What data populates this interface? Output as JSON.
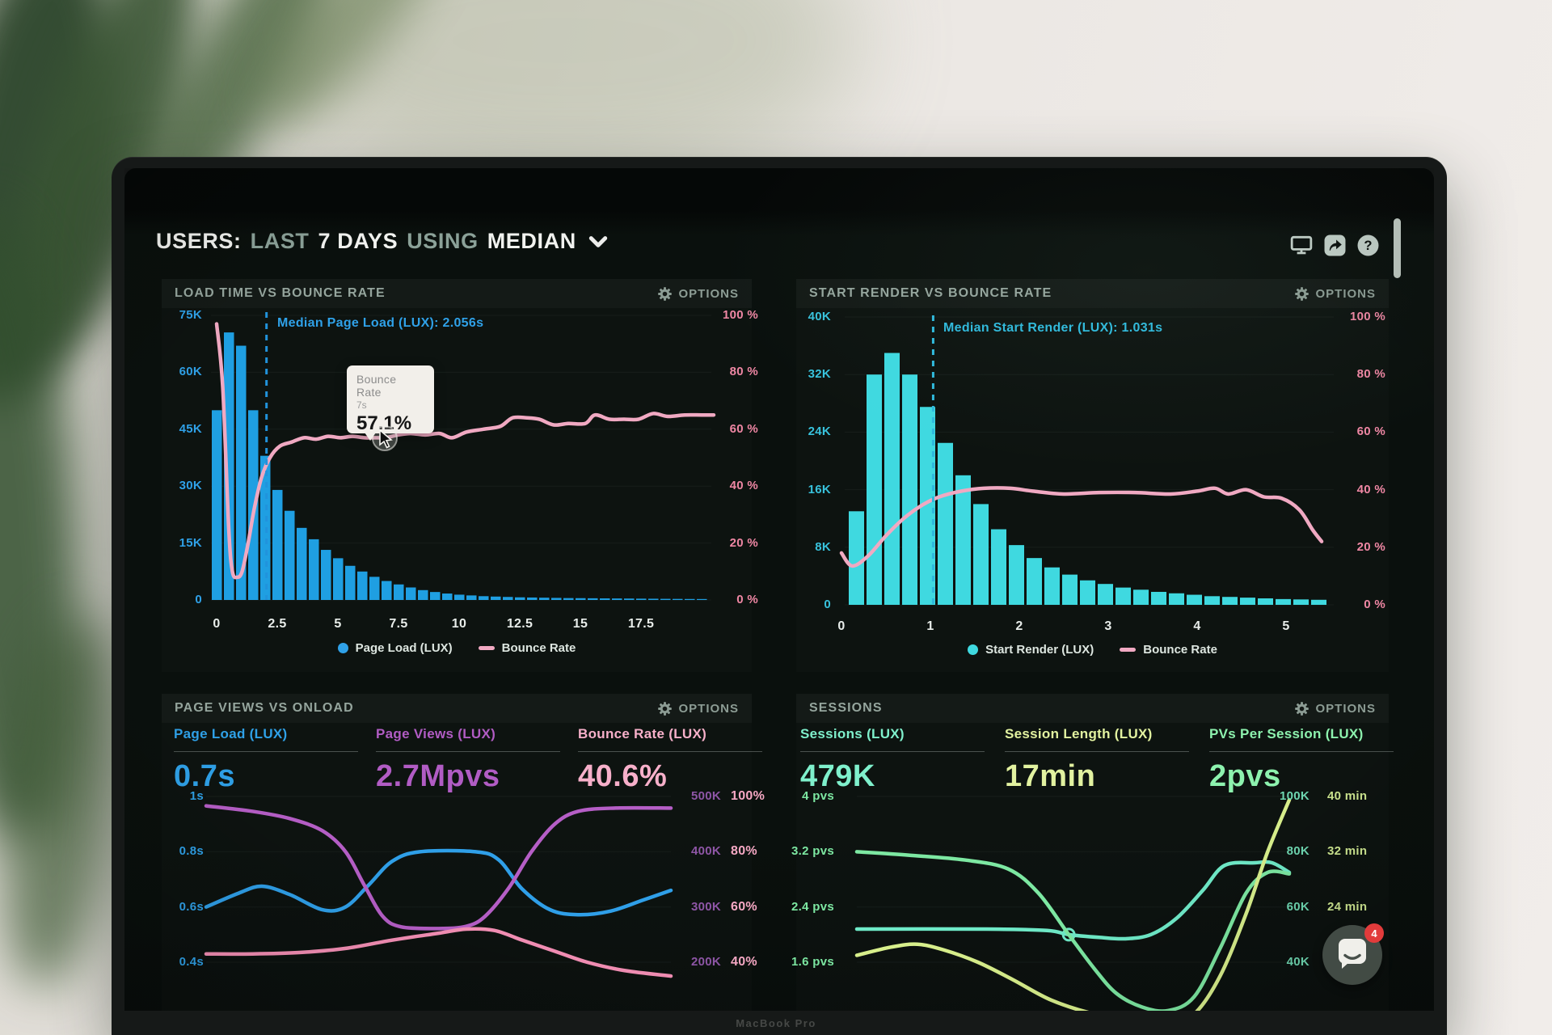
{
  "header": {
    "prefix": "USERS:",
    "word_last": "LAST",
    "days": "7 DAYS",
    "word_using": "USING",
    "metric": "MEDIAN"
  },
  "ui": {
    "options_label": "OPTIONS"
  },
  "tooltip": {
    "series": "Bounce Rate",
    "x_value": "7s",
    "value": "57.1%"
  },
  "chat": {
    "badge": "4"
  },
  "panels": {
    "load_time": {
      "title": "LOAD TIME VS BOUNCE RATE",
      "median_label": "Median Page Load (LUX): 2.056s",
      "legend": [
        "Page Load (LUX)",
        "Bounce Rate"
      ]
    },
    "start_render": {
      "title": "START RENDER VS BOUNCE RATE",
      "median_label": "Median Start Render (LUX): 1.031s",
      "legend": [
        "Start Render (LUX)",
        "Bounce Rate"
      ]
    },
    "page_views": {
      "title": "PAGE VIEWS VS ONLOAD",
      "metrics": [
        {
          "label": "Page Load (LUX)",
          "value": "0.7s"
        },
        {
          "label": "Page Views (LUX)",
          "value": "2.7Mpvs"
        },
        {
          "label": "Bounce Rate (LUX)",
          "value": "40.6%"
        }
      ]
    },
    "sessions": {
      "title": "SESSIONS",
      "metrics": [
        {
          "label": "Sessions (LUX)",
          "value": "479K"
        },
        {
          "label": "Session Length (LUX)",
          "value": "17min"
        },
        {
          "label": "PVs Per Session (LUX)",
          "value": "2pvs"
        }
      ]
    }
  },
  "colors": {
    "bars_blue": "#1F9FE2",
    "bars_cyan": "#3FD9E0",
    "bounce_pink": "#F0A9C2",
    "median_blue": "#2193DC",
    "median_cyan": "#2FB9DC",
    "axis_blue": "#2FA1E8",
    "axis_cyan": "#38C2DC",
    "axis_pink": "#EF87A4",
    "axis_white": "#E8EDEA",
    "load_blue": "#2F9FE8",
    "views_purple": "#B55EC6",
    "views_purple_dim": "#8E56A6",
    "bounce_bright": "#F48FB5",
    "pink_bold": "#F6A8C4",
    "sessions_mint": "#6FEAC8",
    "length_yellow": "#D9F08C",
    "pvs_green": "#7DE8A2",
    "mint_dim": "#6FD8B2",
    "yellow_dim": "#CDE690",
    "metric_blue": "#2FA1E8",
    "metric_purple": "#B15CC4",
    "metric_pink": "#F7B0CA",
    "metric_mint": "#7FF0CC",
    "metric_yellow": "#E2F2A0",
    "metric_green": "#8DF2AE",
    "title_gray": "#95A59D"
  },
  "chart_data": [
    {
      "type": "bar",
      "title": "LOAD TIME VS BOUNCE RATE",
      "x_unit": "seconds",
      "bin_width_s": 0.5,
      "x_ticks": [
        "0",
        "2.5",
        "5",
        "7.5",
        "10",
        "12.5",
        "15",
        "17.5"
      ],
      "y_left_ticks": [
        "75K",
        "60K",
        "45K",
        "30K",
        "15K",
        "0"
      ],
      "y_left_max": 75000,
      "y_right_ticks": [
        "100 %",
        "80 %",
        "60 %",
        "40 %",
        "20 %",
        "0 %"
      ],
      "median_s": 2.056,
      "bars_k": [
        50,
        70.5,
        67,
        50,
        38,
        29,
        23.5,
        19,
        16,
        13.2,
        11,
        9,
        7.5,
        6.1,
        5,
        4.1,
        3.3,
        2.6,
        2.1,
        1.7,
        1.4,
        1.2,
        1.0,
        0.9,
        0.8,
        0.7,
        0.65,
        0.6,
        0.55,
        0.5,
        0.48,
        0.45,
        0.42,
        0.4,
        0.38,
        0.35,
        0.33,
        0.3,
        0.28,
        0.26,
        0.25
      ],
      "bounce_rate_pct": [
        [
          0,
          97
        ],
        [
          0.25,
          75
        ],
        [
          0.5,
          25
        ],
        [
          0.65,
          10
        ],
        [
          0.85,
          8
        ],
        [
          1.05,
          10
        ],
        [
          1.3,
          20
        ],
        [
          1.55,
          32
        ],
        [
          1.85,
          43
        ],
        [
          2.2,
          50
        ],
        [
          2.6,
          54
        ],
        [
          3.1,
          55.5
        ],
        [
          3.6,
          57
        ],
        [
          4.1,
          56.5
        ],
        [
          4.6,
          57.5
        ],
        [
          5.1,
          57
        ],
        [
          5.6,
          57.5
        ],
        [
          6.1,
          57
        ],
        [
          6.6,
          57
        ],
        [
          7,
          57.1
        ],
        [
          7.5,
          58
        ],
        [
          8,
          58.5
        ],
        [
          8.6,
          58
        ],
        [
          9.2,
          58.5
        ],
        [
          9.7,
          57
        ],
        [
          10.3,
          59
        ],
        [
          11,
          60
        ],
        [
          11.7,
          61
        ],
        [
          12.2,
          64
        ],
        [
          12.8,
          64
        ],
        [
          13.3,
          63.5
        ],
        [
          13.9,
          61.5
        ],
        [
          14.5,
          62
        ],
        [
          15.2,
          62
        ],
        [
          15.6,
          65
        ],
        [
          16.2,
          63.5
        ],
        [
          16.8,
          63.5
        ],
        [
          17.4,
          63.5
        ],
        [
          18,
          65.5
        ],
        [
          18.6,
          64.5
        ],
        [
          19.3,
          65
        ],
        [
          20,
          65
        ],
        [
          20.5,
          65
        ]
      ],
      "legend": [
        "Page Load (LUX)",
        "Bounce Rate"
      ]
    },
    {
      "type": "bar",
      "title": "START RENDER VS BOUNCE RATE",
      "x_unit": "seconds",
      "bin_width_s": 0.2,
      "x_ticks": [
        "0",
        "1",
        "2",
        "3",
        "4",
        "5"
      ],
      "y_left_ticks": [
        "40K",
        "32K",
        "24K",
        "16K",
        "8K",
        "0"
      ],
      "y_left_max": 40000,
      "y_right_ticks": [
        "100 %",
        "80 %",
        "60 %",
        "40 %",
        "20 %",
        "0 %"
      ],
      "median_s": 1.031,
      "bars_k": [
        13,
        32,
        35,
        32,
        27.5,
        22.5,
        18,
        14,
        10.5,
        8.3,
        6.5,
        5.2,
        4.2,
        3.4,
        2.9,
        2.4,
        2.1,
        1.8,
        1.6,
        1.4,
        1.2,
        1.1,
        1.0,
        0.9,
        0.8,
        0.75,
        0.7
      ],
      "bounce_rate_pct": [
        [
          0,
          18
        ],
        [
          0.12,
          13.5
        ],
        [
          0.3,
          17
        ],
        [
          0.5,
          24
        ],
        [
          0.7,
          30
        ],
        [
          0.9,
          34.5
        ],
        [
          1.1,
          37.5
        ],
        [
          1.35,
          39.5
        ],
        [
          1.6,
          40.5
        ],
        [
          1.9,
          40.5
        ],
        [
          2.15,
          39.5
        ],
        [
          2.5,
          38.5
        ],
        [
          2.9,
          39
        ],
        [
          3.3,
          39
        ],
        [
          3.7,
          38.5
        ],
        [
          4.0,
          39.5
        ],
        [
          4.2,
          40.5
        ],
        [
          4.35,
          38.5
        ],
        [
          4.55,
          40
        ],
        [
          4.75,
          37.5
        ],
        [
          4.95,
          37
        ],
        [
          5.15,
          33
        ],
        [
          5.3,
          26
        ],
        [
          5.4,
          22
        ]
      ],
      "legend": [
        "Start Render (LUX)",
        "Bounce Rate"
      ]
    },
    {
      "type": "line",
      "title": "PAGE VIEWS VS ONLOAD",
      "y_left_ticks": [
        "1s",
        "0.8s",
        "0.6s",
        "0.4s"
      ],
      "y_right_ticks_views": [
        "500K",
        "400K",
        "300K",
        "200K"
      ],
      "y_right_ticks_bounce": [
        "100%",
        "80%",
        "60%",
        "40%"
      ],
      "axes": {
        "s": {
          "min": 0.4,
          "max": 1.0
        },
        "k": {
          "min": 200,
          "max": 500
        },
        "pct": {
          "min": 40,
          "max": 100
        }
      },
      "series": [
        {
          "name": "Page Load (LUX)",
          "axis": "s",
          "color_key": "load_blue",
          "points": [
            [
              0,
              0.6
            ],
            [
              0.07,
              0.65
            ],
            [
              0.12,
              0.675
            ],
            [
              0.18,
              0.645
            ],
            [
              0.25,
              0.59
            ],
            [
              0.3,
              0.6
            ],
            [
              0.35,
              0.68
            ],
            [
              0.4,
              0.765
            ],
            [
              0.46,
              0.8
            ],
            [
              0.58,
              0.8
            ],
            [
              0.63,
              0.77
            ],
            [
              0.68,
              0.665
            ],
            [
              0.74,
              0.59
            ],
            [
              0.8,
              0.572
            ],
            [
              0.87,
              0.585
            ],
            [
              0.94,
              0.625
            ],
            [
              1,
              0.66
            ]
          ]
        },
        {
          "name": "Page Views (LUX)",
          "axis": "k",
          "color_key": "views_purple",
          "points": [
            [
              0,
              483
            ],
            [
              0.1,
              473
            ],
            [
              0.18,
              460
            ],
            [
              0.25,
              438
            ],
            [
              0.3,
              400
            ],
            [
              0.34,
              340
            ],
            [
              0.38,
              283
            ],
            [
              0.42,
              264
            ],
            [
              0.5,
              261
            ],
            [
              0.56,
              265
            ],
            [
              0.6,
              283
            ],
            [
              0.65,
              333
            ],
            [
              0.7,
              400
            ],
            [
              0.75,
              450
            ],
            [
              0.8,
              473
            ],
            [
              0.88,
              479
            ],
            [
              1,
              479
            ]
          ]
        },
        {
          "name": "Bounce Rate (LUX)",
          "axis": "pct",
          "color_key": "bounce_bright",
          "points": [
            [
              0,
              43
            ],
            [
              0.1,
              43
            ],
            [
              0.2,
              43.5
            ],
            [
              0.3,
              45
            ],
            [
              0.4,
              48
            ],
            [
              0.5,
              50.5
            ],
            [
              0.56,
              52
            ],
            [
              0.62,
              51.5
            ],
            [
              0.68,
              48
            ],
            [
              0.75,
              44
            ],
            [
              0.82,
              40
            ],
            [
              0.9,
              37
            ],
            [
              1,
              35
            ]
          ]
        }
      ]
    },
    {
      "type": "line",
      "title": "SESSIONS",
      "y_left_ticks": [
        "4 pvs",
        "3.2 pvs",
        "2.4 pvs",
        "1.6 pvs"
      ],
      "y_right_ticks_sessions": [
        "100K",
        "80K",
        "60K",
        "40K"
      ],
      "y_right_ticks_length": [
        "40 min",
        "32 min",
        "24 min",
        ""
      ],
      "axes": {
        "pvs": {
          "min": 1.6,
          "max": 4.0
        },
        "k": {
          "min": 40,
          "max": 100
        },
        "min": {
          "min": 16,
          "max": 40
        }
      },
      "series": [
        {
          "name": "Sessions (LUX)",
          "axis": "k",
          "color_key": "sessions_mint",
          "marker": [
            0.49,
            50
          ],
          "points": [
            [
              0,
              52
            ],
            [
              0.3,
              52
            ],
            [
              0.44,
              51.5
            ],
            [
              0.49,
              50
            ],
            [
              0.56,
              49
            ],
            [
              0.62,
              48.5
            ],
            [
              0.68,
              50
            ],
            [
              0.74,
              56
            ],
            [
              0.8,
              66
            ],
            [
              0.85,
              75
            ],
            [
              0.92,
              76
            ],
            [
              0.96,
              76
            ],
            [
              1,
              72.5
            ]
          ]
        },
        {
          "name": "PVs Per Session (LUX)",
          "axis": "pvs",
          "color_key": "pvs_green",
          "points": [
            [
              0,
              3.2
            ],
            [
              0.12,
              3.15
            ],
            [
              0.25,
              3.08
            ],
            [
              0.35,
              2.95
            ],
            [
              0.42,
              2.6
            ],
            [
              0.49,
              2.0
            ],
            [
              0.55,
              1.5
            ],
            [
              0.6,
              1.15
            ],
            [
              0.66,
              0.95
            ],
            [
              0.72,
              0.9
            ],
            [
              0.78,
              1.1
            ],
            [
              0.84,
              1.8
            ],
            [
              0.9,
              2.6
            ],
            [
              0.95,
              2.9
            ],
            [
              1,
              2.88
            ]
          ]
        },
        {
          "name": "Session Length (LUX)",
          "axis": "min",
          "color_key": "length_yellow",
          "points": [
            [
              0,
              17
            ],
            [
              0.08,
              18.2
            ],
            [
              0.14,
              18.6
            ],
            [
              0.2,
              17.8
            ],
            [
              0.28,
              16
            ],
            [
              0.36,
              13.5
            ],
            [
              0.45,
              10.5
            ],
            [
              0.55,
              8.5
            ],
            [
              0.65,
              7.5
            ],
            [
              0.72,
              7.2
            ],
            [
              0.78,
              8.5
            ],
            [
              0.84,
              14
            ],
            [
              0.9,
              23
            ],
            [
              0.95,
              32
            ],
            [
              1,
              39.5
            ]
          ]
        }
      ]
    }
  ]
}
